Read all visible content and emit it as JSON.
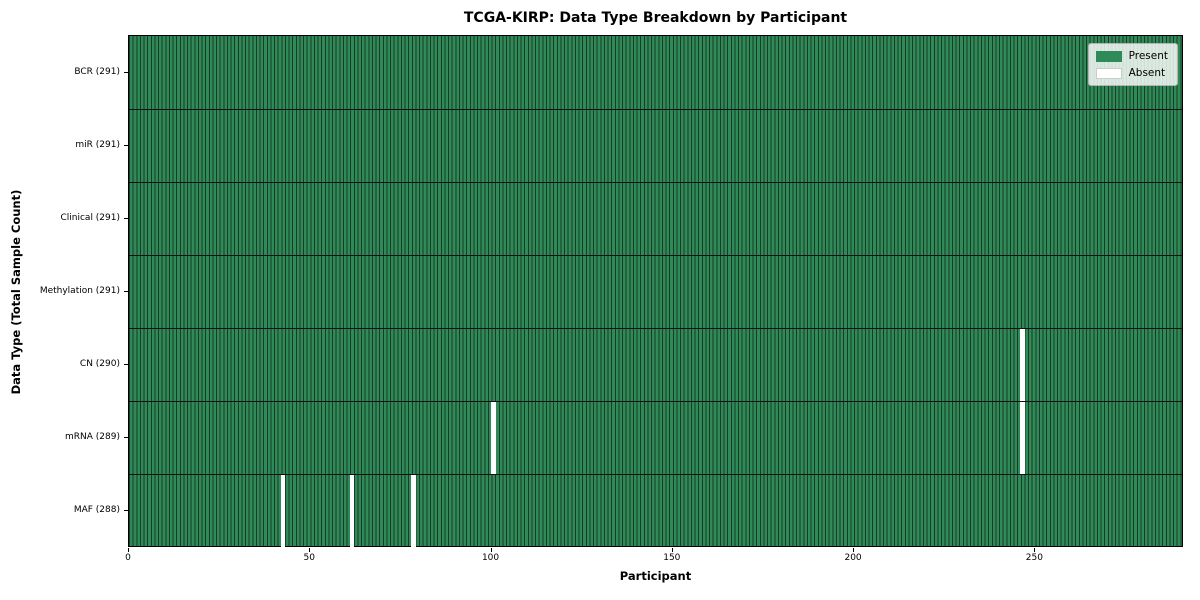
{
  "chart_data": {
    "type": "heatmap",
    "title": "TCGA-KIRP: Data Type Breakdown by Participant",
    "xlabel": "Participant",
    "ylabel": "Data Type (Total Sample Count)",
    "x_ticks": [
      0,
      50,
      100,
      150,
      200,
      250
    ],
    "xlim": [
      0,
      291
    ],
    "n_participants": 291,
    "grid": false,
    "legend": {
      "position": "upper right",
      "entries": [
        {
          "name": "present",
          "label": "Present",
          "color": "#2e8b57"
        },
        {
          "name": "absent",
          "label": "Absent",
          "color": "#ffffff"
        }
      ]
    },
    "rows": [
      {
        "label": "BCR (291)",
        "data_type": "BCR",
        "total_samples": 291,
        "absent_participants": []
      },
      {
        "label": "miR (291)",
        "data_type": "miR",
        "total_samples": 291,
        "absent_participants": []
      },
      {
        "label": "Clinical (291)",
        "data_type": "Clinical",
        "total_samples": 291,
        "absent_participants": []
      },
      {
        "label": "Methylation (291)",
        "data_type": "Methylation",
        "total_samples": 291,
        "absent_participants": []
      },
      {
        "label": "CN (290)",
        "data_type": "CN",
        "total_samples": 290,
        "absent_participants": [
          246
        ]
      },
      {
        "label": "mRNA (289)",
        "data_type": "mRNA",
        "total_samples": 289,
        "absent_participants": [
          100,
          246
        ]
      },
      {
        "label": "MAF (288)",
        "data_type": "MAF",
        "total_samples": 288,
        "absent_participants": [
          42,
          61,
          78
        ]
      }
    ],
    "colors": {
      "present": "#2e8b57",
      "absent": "#ffffff",
      "bar_edge": "#1c3a2a",
      "row_separator": "#111111",
      "spine": "#000000",
      "legend_border": "#b3b3b3",
      "text": "#000000"
    }
  }
}
